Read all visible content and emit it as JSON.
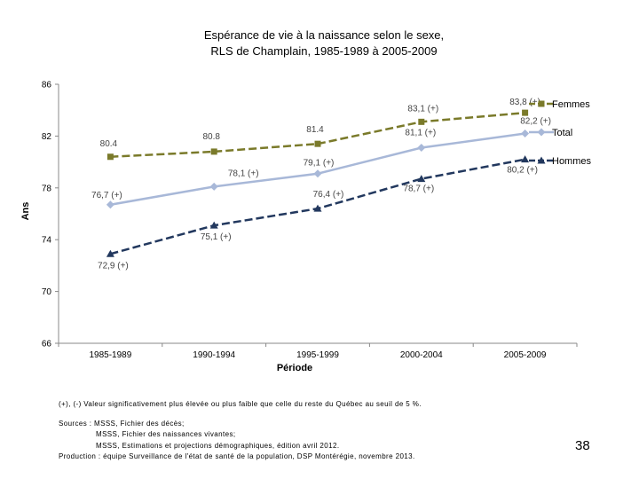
{
  "chart_data": {
    "type": "line",
    "title_line1": "Espérance de vie à la naissance selon le sexe,",
    "title_line2": "RLS de Champlain, 1985-1989 à 2005-2009",
    "xlabel": "Période",
    "ylabel": "Ans",
    "ylim": [
      66,
      86
    ],
    "yticks": [
      "86",
      "82",
      "78",
      "74",
      "70",
      "66"
    ],
    "ytick_values": [
      86,
      82,
      78,
      74,
      70,
      66
    ],
    "categories": [
      "1985-1989",
      "1990-1994",
      "1995-1999",
      "2000-2004",
      "2005-2009"
    ],
    "legend_position": "right",
    "series": [
      {
        "name": "Femmes",
        "color": "#7a7a2a",
        "marker": "square",
        "dash": true,
        "values": [
          80.4,
          80.8,
          81.4,
          83.1,
          83.8
        ],
        "labels": [
          "80.4",
          "80.8",
          "81.4",
          "83,1 (+)",
          "83,8 (+)"
        ]
      },
      {
        "name": "Total",
        "color": "#a8b8d8",
        "marker": "diamond",
        "dash": false,
        "values": [
          76.7,
          78.1,
          79.1,
          81.1,
          82.2
        ],
        "labels": [
          "76,7 (+)",
          "78,1 (+)",
          "79,1 (+)",
          "81,1 (+)",
          "82,2 (+)"
        ]
      },
      {
        "name": "Hommes",
        "color": "#22385e",
        "marker": "triangle",
        "dash": true,
        "values": [
          72.9,
          75.1,
          76.4,
          78.7,
          80.2
        ],
        "labels": [
          "72,9 (+)",
          "75,1 (+)",
          "76,4 (+)",
          "78,7 (+)",
          "80,2 (+)"
        ]
      }
    ]
  },
  "notes": {
    "significance": "(+), (-) Valeur significativement plus élevée ou plus faible que celle du reste du Québec au seuil de 5 %.",
    "sources_line1": "Sources : MSSS, Fichier des décès;",
    "sources_line2": "MSSS, Fichier des naissances vivantes;",
    "sources_line3": "MSSS, Estimations et projections démographiques, édition avril 2012.",
    "production": "Production : équipe Surveillance de l'état de santé de la population, DSP Montérégie, novembre 2013."
  },
  "page_number": "38"
}
